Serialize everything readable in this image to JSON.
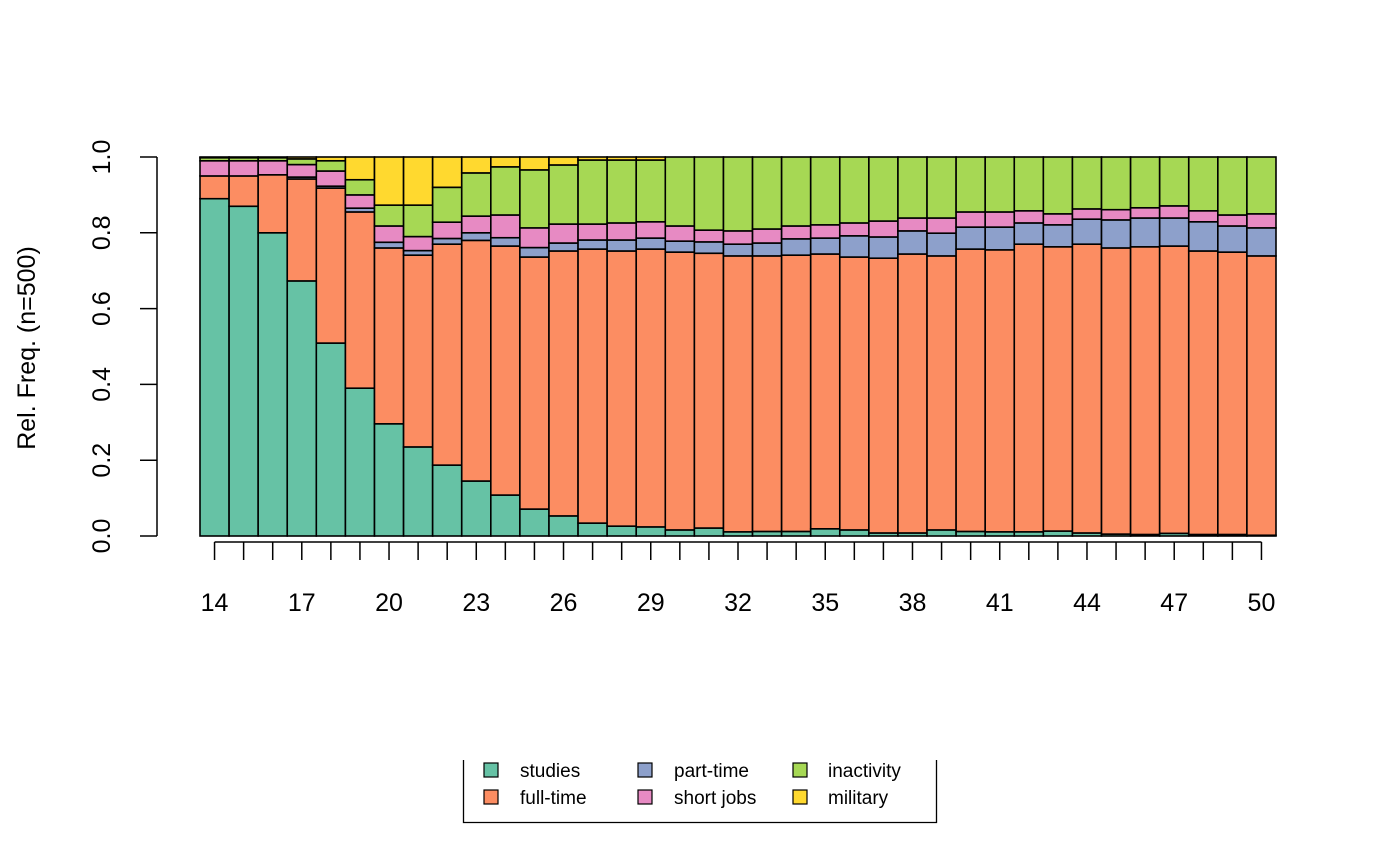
{
  "chart_data": {
    "type": "bar",
    "stacked": true,
    "title": "",
    "xlabel": "",
    "ylabel": "Rel. Freq. (n=500)",
    "ylim": [
      0,
      1
    ],
    "yticks": [
      "0.0",
      "0.2",
      "0.4",
      "0.6",
      "0.8",
      "1.0"
    ],
    "xtick_labels": [
      "14",
      "17",
      "20",
      "23",
      "26",
      "29",
      "32",
      "35",
      "38",
      "41",
      "44",
      "47",
      "50"
    ],
    "grid": false,
    "legend_placement": "bottom",
    "categories": [
      14,
      15,
      16,
      17,
      18,
      19,
      20,
      21,
      22,
      23,
      24,
      25,
      26,
      27,
      28,
      29,
      30,
      31,
      32,
      33,
      34,
      35,
      36,
      37,
      38,
      39,
      40,
      41,
      42,
      43,
      44,
      45,
      46,
      47,
      48,
      49,
      50
    ],
    "series": [
      {
        "name": "studies",
        "color": "#66C2A5",
        "values": [
          0.89,
          0.87,
          0.8,
          0.673,
          0.509,
          0.39,
          0.296,
          0.235,
          0.187,
          0.145,
          0.108,
          0.071,
          0.053,
          0.034,
          0.026,
          0.024,
          0.016,
          0.021,
          0.011,
          0.012,
          0.012,
          0.019,
          0.016,
          0.008,
          0.008,
          0.016,
          0.012,
          0.011,
          0.011,
          0.013,
          0.008,
          0.005,
          0.004,
          0.007,
          0.004,
          0.004,
          0.002
        ]
      },
      {
        "name": "full-time",
        "color": "#FC8D62",
        "values": [
          0.06,
          0.08,
          0.153,
          0.269,
          0.409,
          0.465,
          0.464,
          0.506,
          0.583,
          0.635,
          0.657,
          0.665,
          0.699,
          0.723,
          0.726,
          0.733,
          0.733,
          0.725,
          0.728,
          0.727,
          0.729,
          0.725,
          0.72,
          0.725,
          0.736,
          0.723,
          0.745,
          0.744,
          0.759,
          0.75,
          0.762,
          0.755,
          0.759,
          0.758,
          0.748,
          0.745,
          0.737
        ]
      },
      {
        "name": "part-time",
        "color": "#8DA0CB",
        "values": [
          0,
          0,
          0,
          0.005,
          0.005,
          0.01,
          0.015,
          0.012,
          0.015,
          0.02,
          0.022,
          0.025,
          0.021,
          0.024,
          0.029,
          0.029,
          0.029,
          0.03,
          0.031,
          0.034,
          0.043,
          0.042,
          0.056,
          0.056,
          0.061,
          0.06,
          0.058,
          0.06,
          0.056,
          0.058,
          0.066,
          0.074,
          0.076,
          0.074,
          0.077,
          0.069,
          0.074
        ]
      },
      {
        "name": "short jobs",
        "color": "#E78AC3",
        "values": [
          0.04,
          0.04,
          0.037,
          0.033,
          0.04,
          0.035,
          0.043,
          0.037,
          0.043,
          0.044,
          0.06,
          0.052,
          0.05,
          0.042,
          0.045,
          0.043,
          0.04,
          0.031,
          0.035,
          0.037,
          0.034,
          0.035,
          0.034,
          0.042,
          0.034,
          0.04,
          0.04,
          0.04,
          0.032,
          0.029,
          0.027,
          0.027,
          0.027,
          0.032,
          0.029,
          0.029,
          0.037
        ]
      },
      {
        "name": "inactivity",
        "color": "#A6D854",
        "values": [
          0.008,
          0.008,
          0.008,
          0.015,
          0.027,
          0.04,
          0.055,
          0.083,
          0.092,
          0.114,
          0.127,
          0.153,
          0.156,
          0.169,
          0.166,
          0.163,
          0.182,
          0.193,
          0.195,
          0.19,
          0.182,
          0.179,
          0.174,
          0.169,
          0.161,
          0.161,
          0.145,
          0.145,
          0.142,
          0.15,
          0.137,
          0.139,
          0.134,
          0.129,
          0.142,
          0.153,
          0.15
        ]
      },
      {
        "name": "military",
        "color": "#FFD92F",
        "values": [
          0.002,
          0.002,
          0.002,
          0.005,
          0.01,
          0.06,
          0.127,
          0.127,
          0.08,
          0.042,
          0.026,
          0.034,
          0.021,
          0.008,
          0.008,
          0.008,
          0,
          0,
          0,
          0,
          0,
          0,
          0,
          0,
          0,
          0,
          0,
          0,
          0,
          0,
          0,
          0,
          0,
          0,
          0,
          0,
          0
        ]
      }
    ]
  }
}
